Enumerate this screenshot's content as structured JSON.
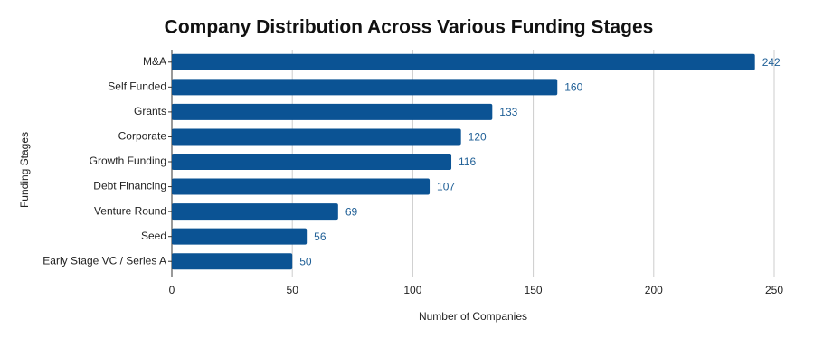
{
  "chart_data": {
    "type": "bar",
    "orientation": "horizontal",
    "title": "Company Distribution Across Various Funding Stages",
    "x_label": "Number of Companies",
    "y_label": "Funding Stages",
    "categories": [
      "M&A",
      "Self Funded",
      "Grants",
      "Corporate",
      "Growth Funding",
      "Debt Financing",
      "Venture Round",
      "Seed",
      "Early Stage VC / Series A"
    ],
    "values": [
      242,
      160,
      133,
      120,
      116,
      107,
      69,
      56,
      50
    ],
    "color": "#0b5394",
    "label_color": "#1f5f96",
    "xlim": [
      0,
      250
    ],
    "xticks": [
      0,
      50,
      100,
      150,
      200,
      250
    ],
    "grid": true
  }
}
